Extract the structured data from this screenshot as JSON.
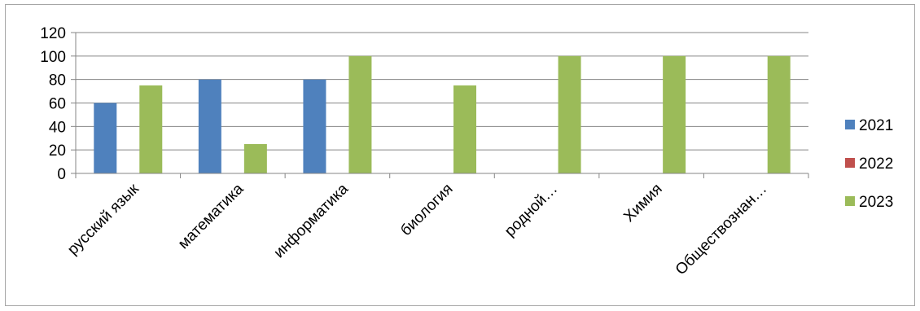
{
  "chart_data": {
    "type": "bar",
    "categories": [
      "русский язык",
      "математика",
      "информатика",
      "биология",
      "родной…",
      "Химия",
      "Обществознан…"
    ],
    "series": [
      {
        "name": "2021",
        "color": "#4f81bd",
        "values": [
          60,
          80,
          80,
          0,
          0,
          0,
          0
        ]
      },
      {
        "name": "2022",
        "color": "#c0504d",
        "values": [
          0,
          0,
          0,
          0,
          0,
          0,
          0
        ]
      },
      {
        "name": "2023",
        "color": "#9bbb59",
        "values": [
          75,
          25,
          100,
          75,
          100,
          100,
          100
        ]
      }
    ],
    "yticks": [
      "0",
      "20",
      "40",
      "60",
      "80",
      "100",
      "120"
    ],
    "ylim": [
      0,
      120
    ],
    "grid": true,
    "legend": "right",
    "title": "",
    "xlabel": "",
    "ylabel": ""
  }
}
